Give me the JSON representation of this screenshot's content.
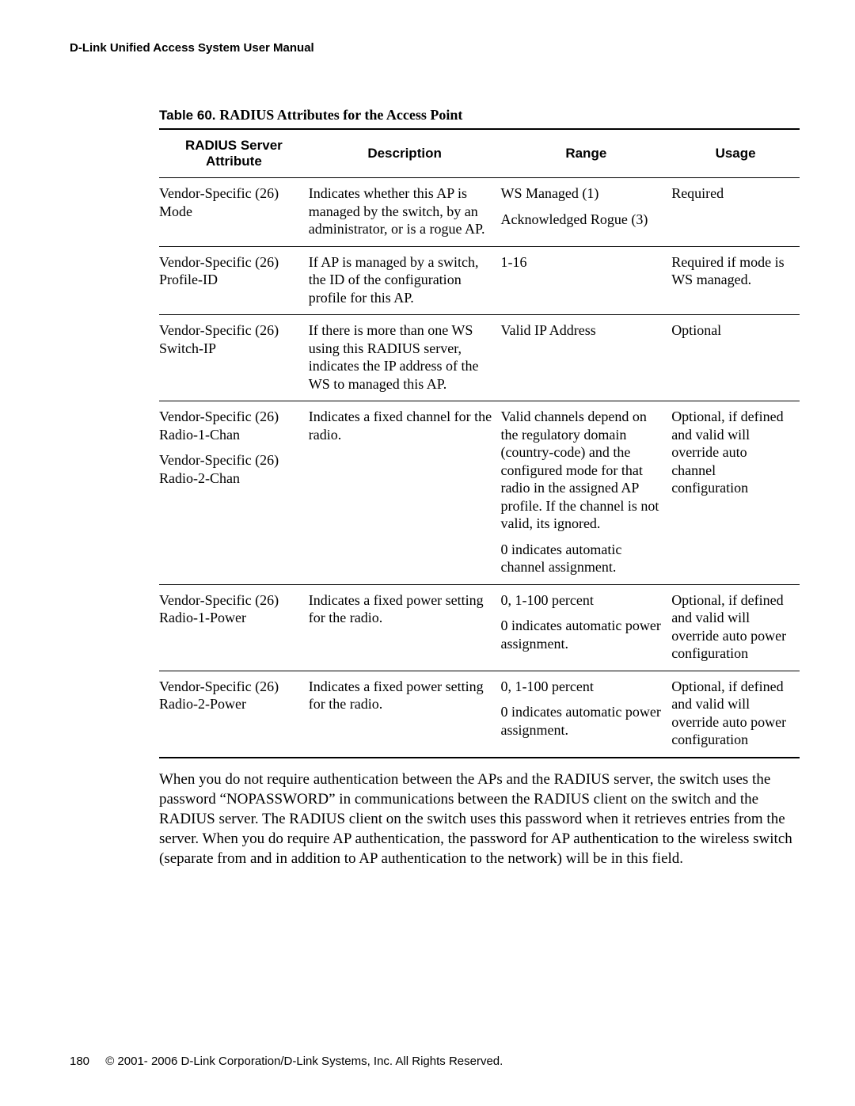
{
  "header": {
    "title": "D-Link Unified Access System User Manual"
  },
  "caption": {
    "lead": "Table 60.",
    "rest": "RADIUS Attributes for the Access Point"
  },
  "columns": {
    "c1": "RADIUS Server Attribute",
    "c2": "Description",
    "c3": "Range",
    "c4": "Usage"
  },
  "rows": {
    "r1": {
      "attr": "Vendor-Specific (26) Mode",
      "desc": "Indicates whether this AP is managed by the switch, by an administrator, or is a rogue AP.",
      "range_a": "WS Managed (1)",
      "range_b": "Acknowledged Rogue (3)",
      "usage": "Required"
    },
    "r2": {
      "attr": "Vendor-Specific (26) Profile-ID",
      "desc": "If AP is managed by a switch, the ID of the configuration profile for this AP.",
      "range": "1-16",
      "usage": "Required if mode is WS managed."
    },
    "r3": {
      "attr": "Vendor-Specific (26) Switch-IP",
      "desc": "If there is more than one WS using this RADIUS server, indicates the IP address of the WS to managed this AP.",
      "range": "Valid IP Address",
      "usage": "Optional"
    },
    "r4": {
      "attr_a": "Vendor-Specific (26) Radio-1-Chan",
      "attr_b": "Vendor-Specific (26) Radio-2-Chan",
      "desc": "Indicates a fixed channel for the radio.",
      "range_a": "Valid channels depend on the regulatory domain (country-code) and the configured mode for that radio in the assigned AP profile. If the channel is not valid, its ignored.",
      "range_b": "0 indicates automatic channel assignment.",
      "usage": "Optional, if defined and valid will override auto channel configuration"
    },
    "r5": {
      "attr": "Vendor-Specific (26) Radio-1-Power",
      "desc": "Indicates a fixed power setting for the radio.",
      "range_a": "0, 1-100 percent",
      "range_b": "0 indicates automatic power assignment.",
      "usage": "Optional, if defined and valid will override auto power configuration"
    },
    "r6": {
      "attr": "Vendor-Specific (26) Radio-2-Power",
      "desc": "Indicates a fixed power setting for the radio.",
      "range_a": "0, 1-100 percent",
      "range_b": "0 indicates automatic power assignment.",
      "usage": "Optional, if defined and valid will override auto power configuration"
    }
  },
  "body": {
    "p1": "When you do not require authentication between the APs and the RADIUS server, the switch uses the password “NOPASSWORD” in communications between the RADIUS client on the switch and the RADIUS server. The RADIUS client on the switch uses this password when it retrieves entries from the server. When you do require AP authentication, the password for AP authentication to the wireless switch (separate from and in addition to AP authentication to the network) will be in this field."
  },
  "footer": {
    "page": "180",
    "copyright": "© 2001- 2006 D-Link Corporation/D-Link Systems, Inc. All Rights Reserved."
  }
}
